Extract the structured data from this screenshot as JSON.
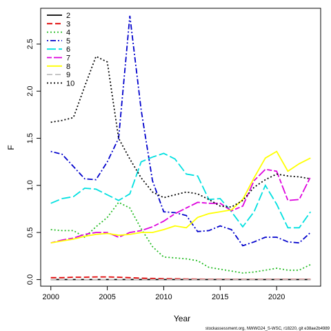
{
  "chart_data": {
    "type": "line",
    "xlabel": "Year",
    "ylabel": "F",
    "xlim": [
      1999.1,
      2023.9
    ],
    "ylim": [
      -0.07,
      2.88
    ],
    "x_ticks": [
      "2000",
      "2005",
      "2010",
      "2015",
      "2020"
    ],
    "y_ticks": [
      "0.0",
      "0.5",
      "1.0",
      "1.5",
      "2.0",
      "2.5"
    ],
    "legend_position": "top-left",
    "credit": "stockassessment.org, NWWG24_S-WSC, r18220, git e38ae2b4989",
    "x": [
      2000,
      2001,
      2002,
      2003,
      2004,
      2005,
      2006,
      2007,
      2008,
      2009,
      2010,
      2011,
      2012,
      2013,
      2014,
      2015,
      2016,
      2017,
      2018,
      2019,
      2020,
      2021,
      2022,
      2023
    ],
    "series": [
      {
        "name": "2",
        "color": "#000000",
        "dash": "solid",
        "values": [
          0.0,
          0.0,
          0.0,
          0.0,
          0.0,
          0.0,
          0.0,
          0.0,
          0.0,
          0.0,
          0.0,
          0.0,
          0.0,
          0.0,
          0.0,
          0.0,
          0.0,
          0.0,
          0.0,
          0.0,
          0.0,
          0.0,
          0.0,
          0.0
        ]
      },
      {
        "name": "3",
        "color": "#df0000",
        "dash": "dashed",
        "values": [
          0.02,
          0.02,
          0.025,
          0.025,
          0.028,
          0.028,
          0.025,
          0.02,
          0.015,
          0.012,
          0.01,
          0.008,
          0.006,
          0.005,
          0.004,
          0.004,
          0.003,
          0.003,
          0.003,
          0.003,
          0.003,
          0.003,
          0.003,
          0.003
        ]
      },
      {
        "name": "4",
        "color": "#22bb22",
        "dash": "dotted",
        "values": [
          0.53,
          0.52,
          0.52,
          0.45,
          0.56,
          0.66,
          0.82,
          0.76,
          0.54,
          0.35,
          0.24,
          0.23,
          0.22,
          0.2,
          0.13,
          0.11,
          0.09,
          0.07,
          0.08,
          0.1,
          0.12,
          0.1,
          0.1,
          0.16
        ]
      },
      {
        "name": "5",
        "color": "#0000cc",
        "dash": "dotdash",
        "values": [
          1.36,
          1.33,
          1.2,
          1.07,
          1.06,
          1.25,
          1.5,
          2.8,
          1.8,
          1.05,
          0.72,
          0.71,
          0.68,
          0.51,
          0.52,
          0.57,
          0.53,
          0.36,
          0.4,
          0.45,
          0.45,
          0.4,
          0.39,
          0.5
        ]
      },
      {
        "name": "6",
        "color": "#00e0e0",
        "dash": "longdash",
        "values": [
          0.81,
          0.86,
          0.88,
          0.97,
          0.96,
          0.9,
          0.84,
          0.91,
          1.25,
          1.3,
          1.34,
          1.28,
          1.12,
          1.1,
          0.85,
          0.86,
          0.72,
          0.56,
          0.72,
          1.0,
          0.8,
          0.55,
          0.55,
          0.72
        ]
      },
      {
        "name": "7",
        "color": "#dd00dd",
        "dash": "twodash",
        "values": [
          0.39,
          0.42,
          0.44,
          0.48,
          0.5,
          0.5,
          0.45,
          0.5,
          0.52,
          0.56,
          0.62,
          0.7,
          0.76,
          0.82,
          0.81,
          0.81,
          0.73,
          0.78,
          1.05,
          1.17,
          1.15,
          0.84,
          0.85,
          1.09
        ]
      },
      {
        "name": "8",
        "color": "#ffff00",
        "dash": "solid",
        "values": [
          0.39,
          0.41,
          0.43,
          0.46,
          0.48,
          0.49,
          0.47,
          0.48,
          0.5,
          0.5,
          0.53,
          0.57,
          0.55,
          0.66,
          0.7,
          0.72,
          0.74,
          0.85,
          1.08,
          1.29,
          1.36,
          1.15,
          1.23,
          1.29
        ]
      },
      {
        "name": "9",
        "color": "#bebebe",
        "dash": "dashed",
        "values": [
          0.0,
          0.0,
          0.0,
          0.0,
          0.0,
          0.0,
          0.0,
          0.0,
          0.0,
          0.0,
          0.0,
          0.0,
          0.0,
          0.0,
          0.0,
          0.0,
          0.0,
          0.0,
          0.0,
          0.0,
          0.0,
          0.0,
          0.0,
          0.0
        ]
      },
      {
        "name": "10",
        "color": "#000000",
        "dash": "dotted",
        "values": [
          1.67,
          1.69,
          1.72,
          2.05,
          2.37,
          2.31,
          1.5,
          1.28,
          1.08,
          0.93,
          0.87,
          0.9,
          0.93,
          0.91,
          0.85,
          0.78,
          0.77,
          0.84,
          0.98,
          1.06,
          1.12,
          1.1,
          1.09,
          1.07
        ]
      }
    ]
  }
}
